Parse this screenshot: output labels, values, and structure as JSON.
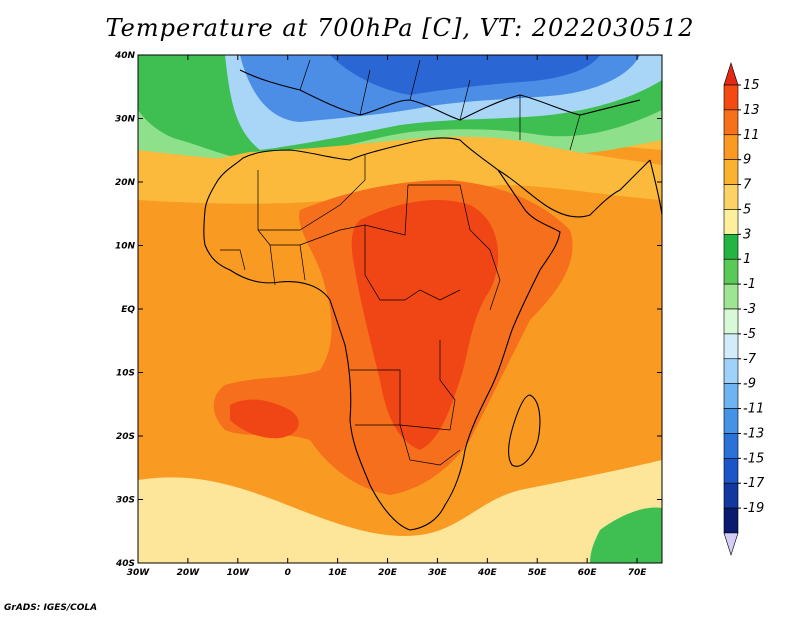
{
  "title": "Temperature at 700hPa [C], VT: 2022030512",
  "credit": "GrADS: IGES/COLA",
  "map": {
    "lat_labels": [
      "40N",
      "30N",
      "20N",
      "10N",
      "EQ",
      "10S",
      "20S",
      "30S",
      "40S"
    ],
    "lon_labels": [
      "30W",
      "20W",
      "10W",
      "0",
      "10E",
      "20E",
      "30E",
      "40E",
      "50E",
      "60E",
      "70E"
    ]
  },
  "colorbar": {
    "labels": [
      "15",
      "13",
      "11",
      "9",
      "7",
      "5",
      "3",
      "1",
      "-1",
      "-3",
      "-5",
      "-7",
      "-9",
      "-11",
      "-13",
      "-15",
      "-17",
      "-19"
    ],
    "colors": [
      "#e32814",
      "#f24a12",
      "#f7711a",
      "#fa9a21",
      "#fbb22f",
      "#fcd166",
      "#fdf09c",
      "#24b441",
      "#5ac957",
      "#9ee593",
      "#d8f8d8",
      "#d2ecfa",
      "#9fd2f8",
      "#6fb3f0",
      "#4692e6",
      "#2b72d8",
      "#1b55c8",
      "#12379e",
      "#0a1a6e",
      "#d5ccf7"
    ]
  },
  "field_colors": {
    "very_hot": "#f04616",
    "hot": "#f56f1c",
    "warm": "#f99b22",
    "mild": "#fbba3c",
    "cool": "#fde59a",
    "green_light": "#8ee08a",
    "green": "#3fbf52",
    "blue_light": "#a9d6f7",
    "blue": "#4c8ee6",
    "blue_dark": "#2a66d4"
  }
}
